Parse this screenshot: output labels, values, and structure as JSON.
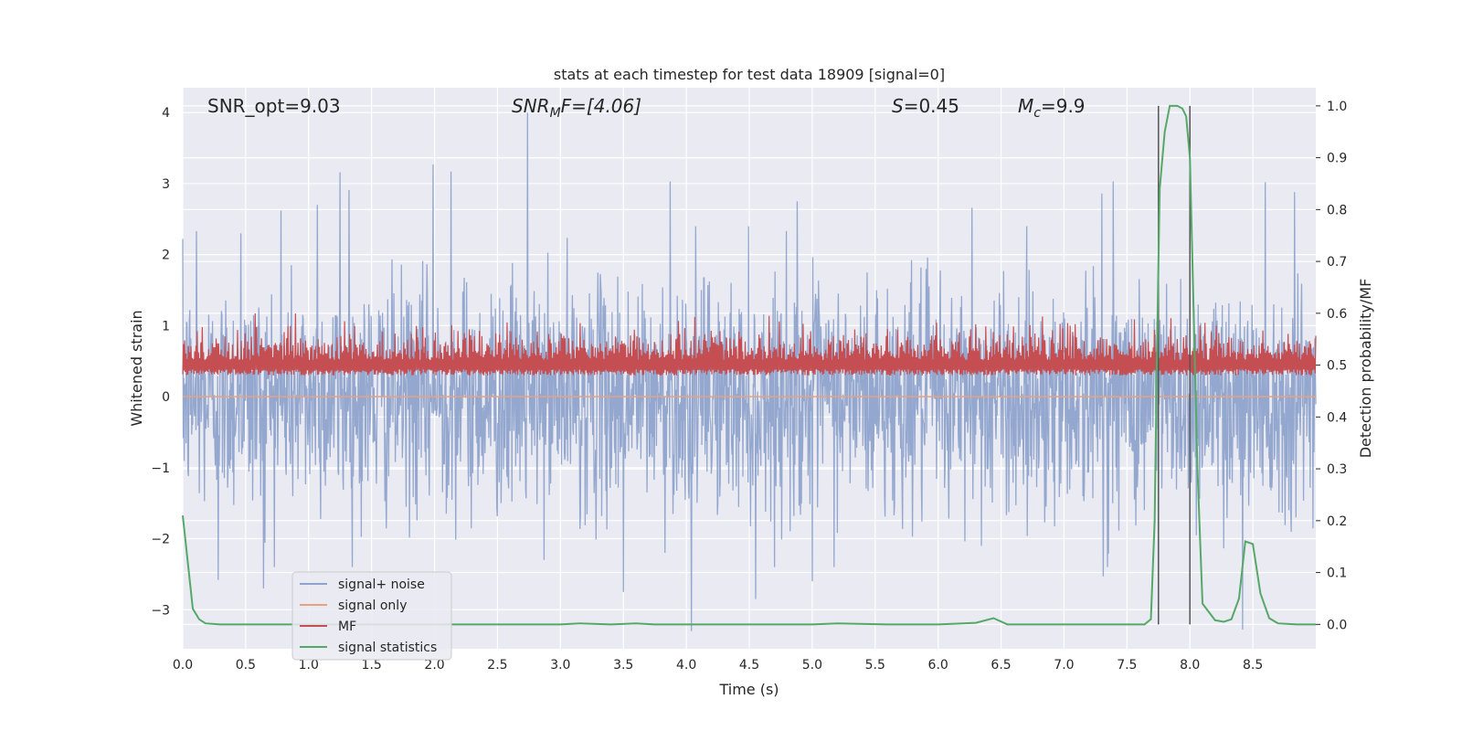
{
  "chart_data": {
    "type": "line",
    "title": "stats at each timestep for test data 18909 [signal=0]",
    "xlabel": "Time (s)",
    "ylabel_left": "Whitened strain",
    "ylabel_right": "Detection probability/MF",
    "xlim": [
      0.0,
      9.0
    ],
    "ylim_left": [
      -3.55,
      4.35
    ],
    "ylim_right": [
      -0.047,
      1.035
    ],
    "xticks": [
      "0.0",
      "0.5",
      "1.0",
      "1.5",
      "2.0",
      "2.5",
      "3.0",
      "3.5",
      "4.0",
      "4.5",
      "5.0",
      "5.5",
      "6.0",
      "6.5",
      "7.0",
      "7.5",
      "8.0",
      "8.5"
    ],
    "yticks_left": [
      "4",
      "3",
      "2",
      "1",
      "0",
      "−1",
      "−2",
      "−3"
    ],
    "yticks_right": [
      "1.0",
      "0.9",
      "0.8",
      "0.7",
      "0.6",
      "0.5",
      "0.4",
      "0.3",
      "0.2",
      "0.1",
      "0.0"
    ],
    "grid": true,
    "legend_position": "lower-left",
    "annotations": {
      "snr_opt": "SNR_opt=9.03",
      "snr_mf_base": "SNR",
      "snr_mf_sub": "M",
      "snr_mf_rest": "F=[4.06]",
      "s_sym": "S",
      "s_rest": "=0.45",
      "mc_base": "M",
      "mc_sub": "c",
      "mc_rest": "=9.9"
    },
    "vertical_lines_x": [
      7.75,
      8.0
    ],
    "series": [
      {
        "name": "signal+ noise",
        "color": "#8fa4cc",
        "axis": "left",
        "style": "noise",
        "summary": {
          "mean": 0.0,
          "std": 0.8,
          "min": -3.3,
          "max": 4.0
        },
        "peaks": [
          {
            "x": 0.11,
            "y": 2.33
          },
          {
            "x": 0.46,
            "y": 2.3
          },
          {
            "x": 0.78,
            "y": 2.62
          },
          {
            "x": 1.07,
            "y": 2.7
          },
          {
            "x": 1.25,
            "y": 3.16
          },
          {
            "x": 1.32,
            "y": 2.91
          },
          {
            "x": 1.99,
            "y": 3.27
          },
          {
            "x": 2.13,
            "y": 3.17
          },
          {
            "x": 2.74,
            "y": 4.0
          },
          {
            "x": 3.87,
            "y": 3.03
          },
          {
            "x": 4.88,
            "y": 2.75
          },
          {
            "x": 6.27,
            "y": 2.66
          },
          {
            "x": 7.3,
            "y": 2.86
          },
          {
            "x": 7.39,
            "y": 3.03
          },
          {
            "x": 8.6,
            "y": 3.02
          },
          {
            "x": 8.83,
            "y": 2.88
          }
        ],
        "troughs": [
          {
            "x": 0.28,
            "y": -2.58
          },
          {
            "x": 0.64,
            "y": -2.7
          },
          {
            "x": 3.5,
            "y": -2.75
          },
          {
            "x": 4.04,
            "y": -3.3
          },
          {
            "x": 4.55,
            "y": -2.85
          },
          {
            "x": 5.0,
            "y": -2.6
          },
          {
            "x": 7.31,
            "y": -2.53
          },
          {
            "x": 8.42,
            "y": -3.28
          }
        ]
      },
      {
        "name": "signal only",
        "color": "#e8a17e",
        "axis": "left",
        "style": "flat",
        "x": [
          0.0,
          9.0
        ],
        "y": [
          0.0,
          0.0
        ]
      },
      {
        "name": "MF",
        "color": "#c44e52",
        "axis": "right",
        "style": "band",
        "summary": {
          "mean": 0.5,
          "min": 0.48,
          "max": 0.6
        }
      },
      {
        "name": "signal statistics",
        "color": "#55a868",
        "axis": "right",
        "style": "line",
        "x": [
          0.0,
          0.08,
          0.13,
          0.18,
          0.3,
          0.5,
          1.0,
          2.0,
          2.5,
          3.0,
          3.15,
          3.4,
          3.6,
          3.75,
          4.0,
          5.0,
          5.2,
          5.6,
          6.0,
          6.3,
          6.44,
          6.55,
          7.0,
          7.64,
          7.69,
          7.72,
          7.74,
          7.76,
          7.8,
          7.84,
          7.9,
          7.94,
          7.97,
          8.0,
          8.03,
          8.06,
          8.1,
          8.2,
          8.27,
          8.33,
          8.39,
          8.44,
          8.5,
          8.56,
          8.63,
          8.7,
          8.85,
          9.0
        ],
        "y": [
          0.21,
          0.03,
          0.01,
          0.002,
          0.0,
          0.0,
          0.0,
          0.0,
          0.0,
          0.0,
          0.002,
          0.0,
          0.002,
          0.0,
          0.0,
          0.0,
          0.002,
          0.0,
          0.0,
          0.003,
          0.012,
          0.0,
          0.0,
          0.0,
          0.01,
          0.2,
          0.55,
          0.84,
          0.95,
          1.0,
          1.0,
          0.995,
          0.98,
          0.9,
          0.6,
          0.3,
          0.04,
          0.008,
          0.005,
          0.01,
          0.05,
          0.16,
          0.155,
          0.06,
          0.012,
          0.002,
          0.0,
          0.0
        ]
      }
    ]
  }
}
